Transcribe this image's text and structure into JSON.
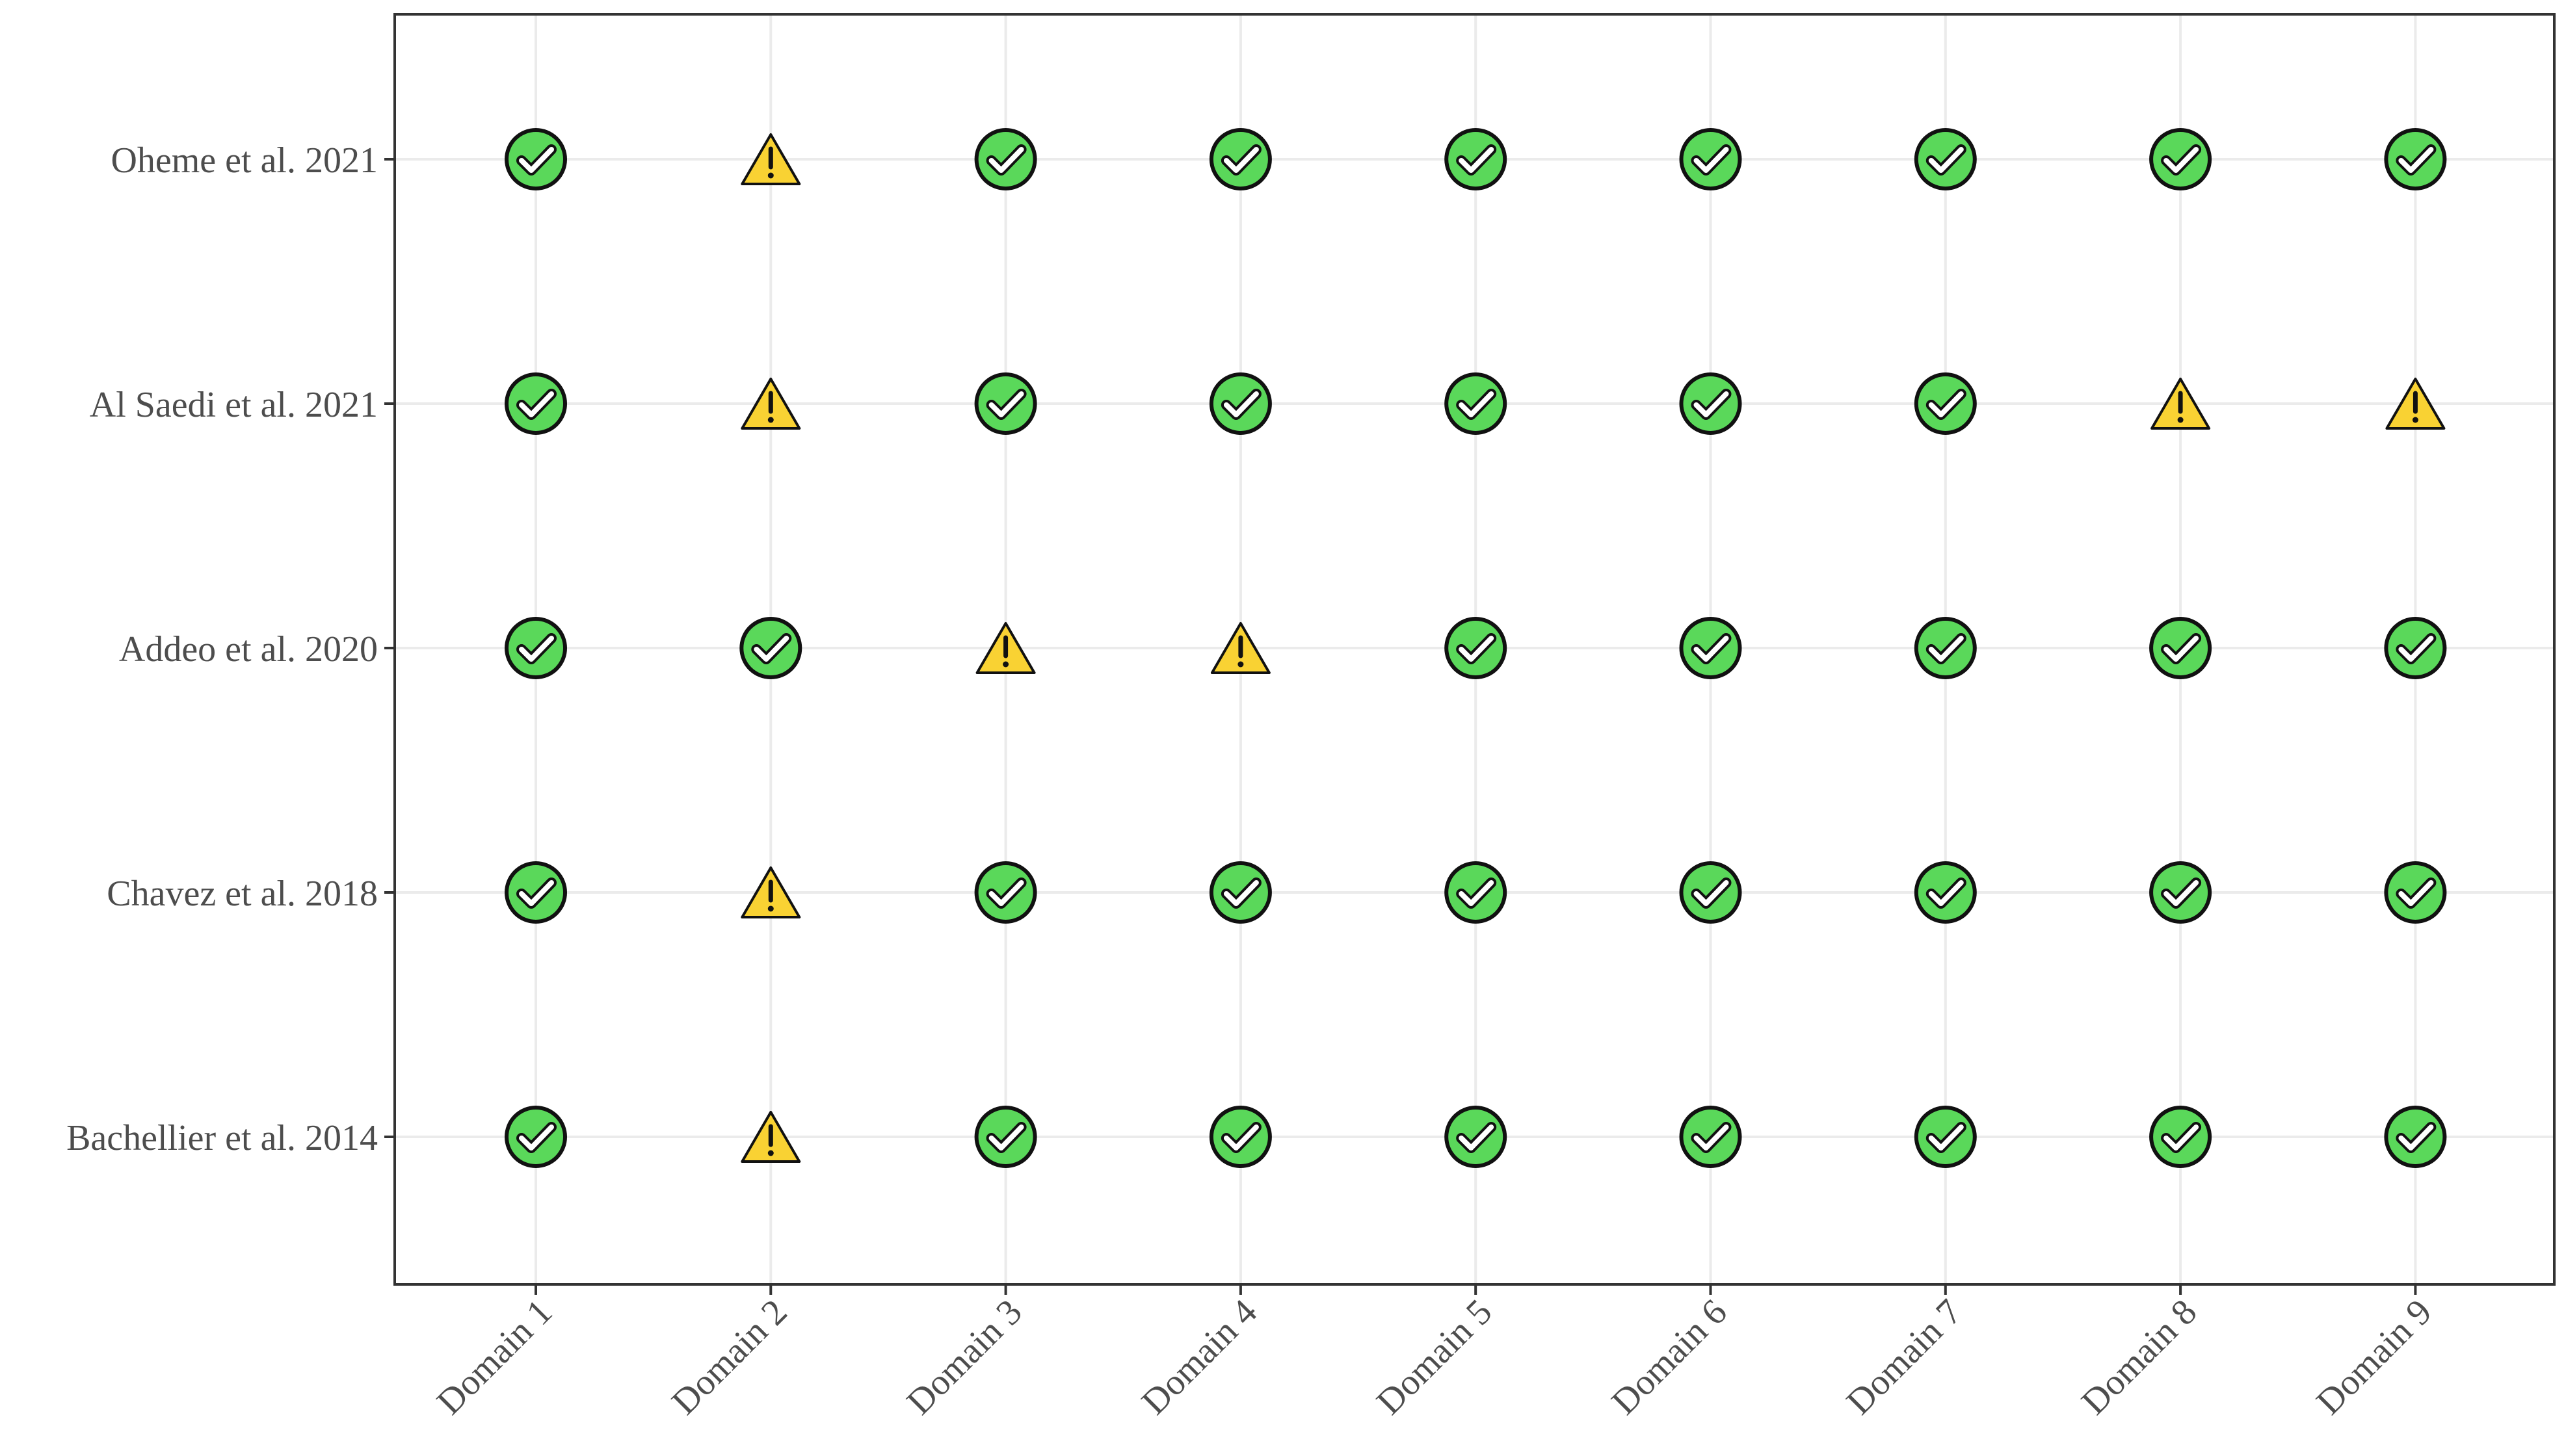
{
  "chart_data": {
    "type": "table",
    "title": "",
    "xlabel": "",
    "ylabel": "",
    "categories": [
      "Domain 1",
      "Domain 2",
      "Domain 3",
      "Domain 4",
      "Domain 5",
      "Domain 6",
      "Domain 7",
      "Domain 8",
      "Domain 9"
    ],
    "studies": [
      "Oheme et al. 2021",
      "Al Saedi et al. 2021",
      "Addeo et al. 2020",
      "Chavez et al. 2018",
      "Bachellier et al. 2014"
    ],
    "series": [
      {
        "study_index": 0,
        "values": [
          "check",
          "warning",
          "check",
          "check",
          "check",
          "check",
          "check",
          "check",
          "check"
        ]
      },
      {
        "study_index": 1,
        "values": [
          "check",
          "warning",
          "check",
          "check",
          "check",
          "check",
          "check",
          "warning",
          "warning"
        ]
      },
      {
        "study_index": 2,
        "values": [
          "check",
          "check",
          "warning",
          "warning",
          "check",
          "check",
          "check",
          "check",
          "check"
        ]
      },
      {
        "study_index": 3,
        "values": [
          "check",
          "warning",
          "check",
          "check",
          "check",
          "check",
          "check",
          "check",
          "check"
        ]
      },
      {
        "study_index": 4,
        "values": [
          "check",
          "warning",
          "check",
          "check",
          "check",
          "check",
          "check",
          "check",
          "check"
        ]
      }
    ],
    "grid": true,
    "legend": "none",
    "colors": {
      "check_fill": "#5ad85a",
      "warning_fill": "#f9d233",
      "outline": "#111111",
      "grid": "#ebebeb",
      "frame": "#333333",
      "tick_text": "#4d4d4d"
    },
    "icons": {
      "check": "check-circle-icon",
      "warning": "warning-triangle-icon"
    }
  }
}
